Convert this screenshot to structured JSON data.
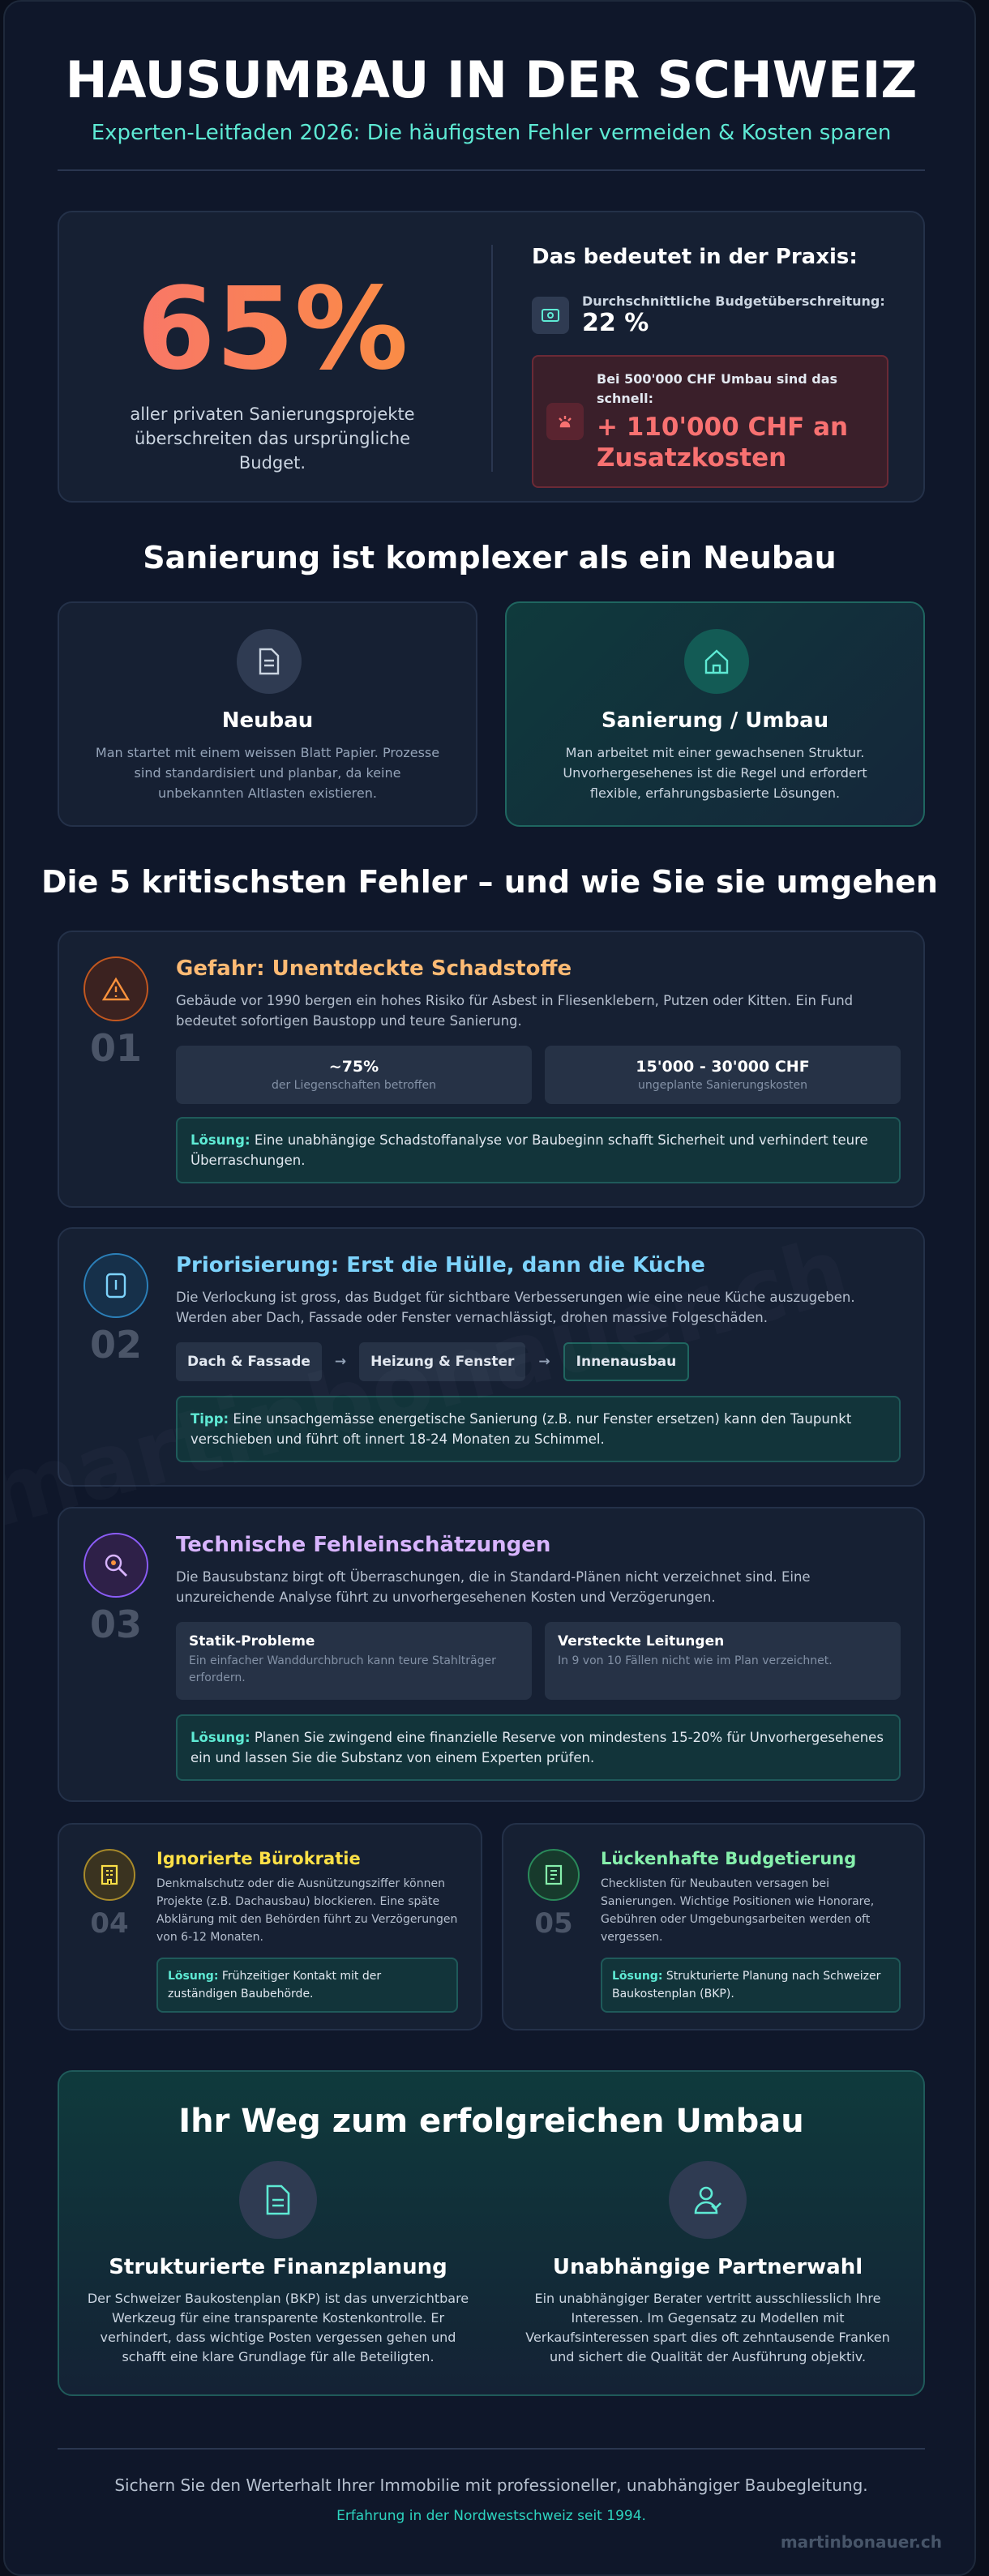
{
  "header": {
    "title": "HAUSUMBAU IN DER SCHWEIZ",
    "subtitle": "Experten-Leitfaden 2026: Die häufigsten Fehler vermeiden & Kosten sparen"
  },
  "stat": {
    "percent": "65%",
    "text": "aller privaten Sanierungsprojekte überschreiten das ursprüngliche Budget.",
    "practice_title": "Das bedeutet in der Praxis:",
    "avg_label": "Durchschnittliche Budgetüberschreitung:",
    "avg_value": "22 %",
    "example_label": "Bei 500'000 CHF Umbau sind das schnell:",
    "example_value": "+ 110'000 CHF an Zusatzkosten"
  },
  "comparison": {
    "title": "Sanierung ist komplexer als ein Neubau",
    "cards": [
      {
        "title": "Neubau",
        "text": "Man startet mit einem weissen Blatt Papier. Prozesse sind standardisiert und planbar, da keine unbekannten Altlasten existieren."
      },
      {
        "title": "Sanierung / Umbau",
        "text": "Man arbeitet mit einer gewachsenen Struktur. Unvorhergesehenes ist die Regel und erfordert flexible, erfahrungsbasierte Lösungen."
      }
    ]
  },
  "errors": {
    "title": "Die 5 kritischsten Fehler – und wie Sie sie umgehen",
    "items": [
      {
        "number": "01",
        "title": "Gefahr: Unentdeckte Schadstoffe",
        "text": "Gebäude vor 1990 bergen ein hohes Risiko für Asbest in Fliesenklebern, Putzen oder Kitten. Ein Fund bedeutet sofortigen Baustopp und teure Sanierung.",
        "stats": [
          {
            "value": "~75%",
            "label": "der Liegenschaften betroffen"
          },
          {
            "value": "15'000 - 30'000 CHF",
            "label": "ungeplante Sanierungskosten"
          }
        ],
        "note_label": "Lösung:",
        "note": "Eine unabhängige Schadstoffanalyse vor Baubeginn schafft Sicherheit und verhindert teure Überraschungen."
      },
      {
        "number": "02",
        "title": "Priorisierung: Erst die Hülle, dann die Küche",
        "text": "Die Verlockung ist gross, das Budget für sichtbare Verbesserungen wie eine neue Küche auszugeben. Werden aber Dach, Fassade oder Fenster vernachlässigt, drohen massive Folgeschäden.",
        "steps": [
          "Dach & Fassade",
          "Heizung & Fenster",
          "Innenausbau"
        ],
        "note_label": "Tipp:",
        "note": "Eine unsachgemässe energetische Sanierung (z.B. nur Fenster ersetzen) kann den Taupunkt verschieben und führt oft innert 18-24 Monaten zu Schimmel."
      },
      {
        "number": "03",
        "title": "Technische Fehleinschätzungen",
        "text": "Die Bausubstanz birgt oft Überraschungen, die in Standard-Plänen nicht verzeichnet sind. Eine unzureichende Analyse führt zu unvorhergesehenen Kosten und Verzögerungen.",
        "boxes": [
          {
            "title": "Statik-Probleme",
            "text": "Ein einfacher Wanddurchbruch kann teure Stahlträger erfordern."
          },
          {
            "title": "Versteckte Leitungen",
            "text": "In 9 von 10 Fällen nicht wie im Plan verzeichnet."
          }
        ],
        "note_label": "Lösung:",
        "note": "Planen Sie zwingend eine finanzielle Reserve von mindestens 15-20% für Unvorhergesehenes ein und lassen Sie die Substanz von einem Experten prüfen."
      },
      {
        "number": "04",
        "title": "Ignorierte Bürokratie",
        "text": "Denkmalschutz oder die Ausnützungsziffer können Projekte (z.B. Dachausbau) blockieren. Eine späte Abklärung mit den Behörden führt zu Verzögerungen von 6-12 Monaten.",
        "note_label": "Lösung:",
        "note": "Frühzeitiger Kontakt mit der zuständigen Baubehörde."
      },
      {
        "number": "05",
        "title": "Lückenhafte Budgetierung",
        "text": "Checklisten für Neubauten versagen bei Sanierungen. Wichtige Positionen wie Honorare, Gebühren oder Umgebungsarbeiten werden oft vergessen.",
        "note_label": "Lösung:",
        "note": "Strukturierte Planung nach Schweizer Baukostenplan (BKP)."
      }
    ]
  },
  "path": {
    "title": "Ihr Weg zum erfolgreichen Umbau",
    "cards": [
      {
        "title": "Strukturierte Finanzplanung",
        "text": "Der Schweizer Baukostenplan (BKP) ist das unverzichtbare Werkzeug für eine transparente Kostenkontrolle. Er verhindert, dass wichtige Posten vergessen gehen und schafft eine klare Grundlage für alle Beteiligten."
      },
      {
        "title": "Unabhängige Partnerwahl",
        "text": "Ein unabhängiger Berater vertritt ausschliesslich Ihre Interessen. Im Gegensatz zu Modellen mit Verkaufsinteressen spart dies oft zehntausende Franken und sichert die Qualität der Ausführung objektiv."
      }
    ]
  },
  "footer": {
    "text": "Sichern Sie den Werterhalt Ihrer Immobilie mit professioneller, unabhängiger Baubegleitung.",
    "sub": "Erfahrung in der Nordwestschweiz seit 1994.",
    "brand": "martinbonauer.ch"
  }
}
